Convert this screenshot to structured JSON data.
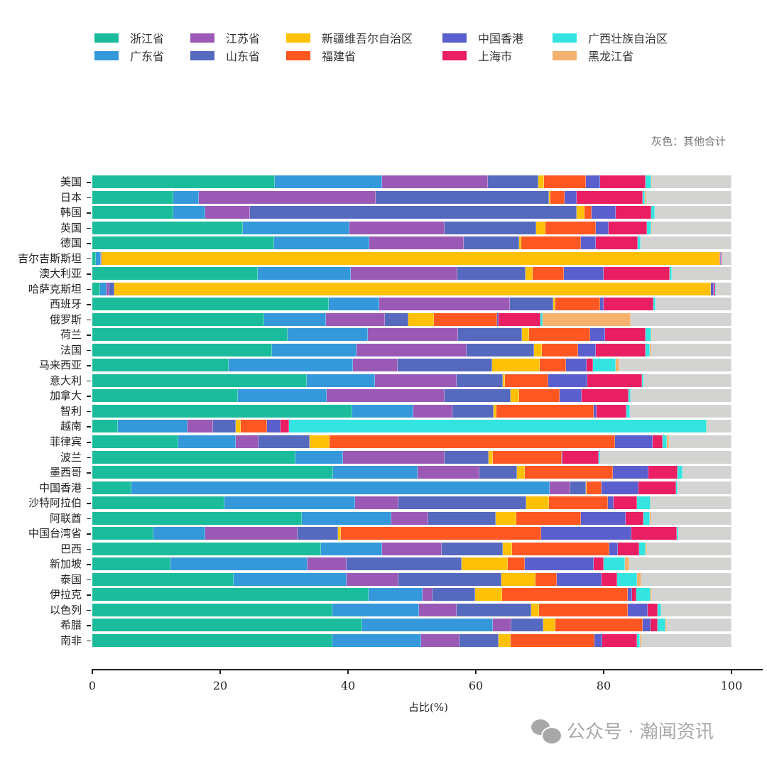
{
  "legend": {
    "items": [
      {
        "label": "浙江省",
        "color": "#1bbc9b"
      },
      {
        "label": "广东省",
        "color": "#3498db"
      },
      {
        "label": "江苏省",
        "color": "#9b59b6"
      },
      {
        "label": "山东省",
        "color": "#5569be"
      },
      {
        "label": "新疆维吾尔自治区",
        "color": "#ffc107"
      },
      {
        "label": "福建省",
        "color": "#ff5722"
      },
      {
        "label": "中国香港",
        "color": "#5b5fce"
      },
      {
        "label": "上海市",
        "color": "#e91e63"
      },
      {
        "label": "广西壮族自治区",
        "color": "#33e4e0"
      },
      {
        "label": "黑龙江省",
        "color": "#f4b26e"
      }
    ],
    "other_color": "#d3d3d1"
  },
  "note": "灰色：其他合计",
  "watermark": {
    "text": "公众号 · 瀚闻资讯",
    "icon": "wechat-icon"
  },
  "chart_data": {
    "type": "bar",
    "orientation": "horizontal",
    "stacked": true,
    "title": "",
    "xlabel": "占比(%)",
    "ylabel": "",
    "xlim": [
      0,
      100
    ],
    "xticks": [
      "0",
      "20",
      "40",
      "60",
      "80",
      "100"
    ],
    "grid": false,
    "legend_position": "top",
    "annotation": "灰色：其他合计",
    "categories": [
      "美国",
      "日本",
      "韩国",
      "英国",
      "德国",
      "吉尔吉斯斯坦",
      "澳大利亚",
      "哈萨克斯坦",
      "西班牙",
      "俄罗斯",
      "荷兰",
      "法国",
      "马来西亚",
      "意大利",
      "加拿大",
      "智利",
      "越南",
      "菲律宾",
      "波兰",
      "墨西哥",
      "中国香港",
      "沙特阿拉伯",
      "阿联酋",
      "中国台湾省",
      "巴西",
      "新加坡",
      "泰国",
      "伊拉克",
      "以色列",
      "希腊",
      "南非"
    ],
    "series": [
      {
        "name": "浙江省",
        "values": [
          28.6,
          12.7,
          12.7,
          23.5,
          28.4,
          0.6,
          25.9,
          1.2,
          37.0,
          26.9,
          30.6,
          28.2,
          21.3,
          33.5,
          22.8,
          40.7,
          4.0,
          13.4,
          31.8,
          37.7,
          6.5,
          20.7,
          32.8,
          9.6,
          35.8,
          12.2,
          22.1,
          43.5,
          37.5,
          42.2,
          37.6
        ]
      },
      {
        "name": "广东省",
        "values": [
          16.7,
          4.0,
          5.0,
          16.7,
          14.9,
          0.7,
          14.5,
          1.0,
          7.9,
          9.7,
          12.5,
          13.2,
          19.5,
          10.7,
          13.9,
          9.5,
          10.9,
          9.1,
          7.4,
          13.2,
          69.5,
          20.4,
          14.0,
          8.1,
          9.5,
          21.5,
          17.7,
          8.5,
          13.6,
          20.5,
          13.8
        ]
      },
      {
        "name": "江苏省",
        "values": [
          16.6,
          27.6,
          7.0,
          14.9,
          14.8,
          0.2,
          16.7,
          0.5,
          20.4,
          9.2,
          14.1,
          17.3,
          7.0,
          12.8,
          18.4,
          6.1,
          4.0,
          3.5,
          15.9,
          9.7,
          3.5,
          6.8,
          5.8,
          14.4,
          9.4,
          6.1,
          8.1,
          1.6,
          5.9,
          2.9,
          6.0
        ]
      },
      {
        "name": "山东省",
        "values": [
          7.9,
          27.1,
          51.1,
          14.3,
          8.7,
          0.0,
          10.7,
          0.8,
          6.8,
          3.7,
          10.0,
          10.5,
          14.8,
          7.2,
          10.3,
          6.5,
          3.5,
          8.0,
          6.9,
          5.9,
          2.6,
          20.0,
          10.5,
          6.4,
          9.5,
          18.0,
          16.1,
          6.7,
          11.7,
          5.0,
          6.2
        ]
      },
      {
        "name": "新疆维吾尔自治区",
        "values": [
          0.9,
          0.3,
          1.2,
          1.5,
          0.3,
          96.6,
          1.1,
          93.3,
          0.3,
          4.0,
          1.1,
          1.3,
          7.4,
          0.4,
          1.4,
          0.4,
          0.8,
          3.1,
          0.7,
          1.2,
          0.1,
          3.6,
          3.2,
          0.4,
          1.5,
          7.2,
          5.3,
          4.3,
          1.2,
          1.8,
          1.8
        ]
      },
      {
        "name": "福建省",
        "values": [
          6.5,
          2.2,
          1.1,
          7.9,
          9.3,
          0.1,
          4.9,
          0.0,
          7.0,
          9.8,
          9.6,
          5.7,
          4.1,
          6.7,
          6.3,
          15.3,
          4.1,
          44.7,
          10.7,
          13.7,
          2.4,
          9.2,
          10.1,
          31.3,
          15.2,
          2.7,
          3.4,
          19.8,
          13.9,
          13.7,
          13.2
        ]
      },
      {
        "name": "中国香港",
        "values": [
          2.2,
          1.9,
          3.8,
          2.0,
          2.4,
          0.1,
          6.2,
          0.4,
          0.6,
          0.3,
          2.3,
          2.7,
          3.2,
          6.2,
          3.5,
          0.4,
          2.2,
          5.9,
          0.2,
          5.6,
          6.2,
          0.9,
          7.1,
          14.1,
          1.3,
          10.7,
          7.0,
          0.6,
          3.1,
          1.2,
          1.2
        ]
      },
      {
        "name": "上海市",
        "values": [
          7.2,
          10.3,
          5.6,
          6.0,
          6.5,
          0.1,
          10.3,
          0.2,
          7.8,
          6.5,
          6.4,
          7.8,
          1.0,
          8.5,
          7.3,
          4.7,
          1.3,
          1.5,
          5.6,
          4.6,
          6.2,
          3.6,
          2.7,
          7.2,
          3.4,
          1.6,
          2.4,
          0.7,
          1.6,
          1.2,
          5.4
        ]
      },
      {
        "name": "广西壮族自治区",
        "values": [
          0.8,
          0.3,
          0.5,
          0.6,
          0.5,
          0.0,
          0.4,
          0.2,
          0.3,
          0.4,
          0.8,
          0.7,
          3.6,
          0.2,
          0.3,
          0.5,
          65.3,
          0.7,
          0.3,
          0.7,
          0.2,
          2.1,
          1.0,
          0.2,
          1.0,
          3.3,
          3.1,
          2.3,
          0.5,
          1.2,
          0.5
        ]
      },
      {
        "name": "黑龙江省",
        "values": [
          0.2,
          0.3,
          0.0,
          0.2,
          0.0,
          0.0,
          0.0,
          0.0,
          0.0,
          13.7,
          0.1,
          0.2,
          0.6,
          0.0,
          0.0,
          0.0,
          0.1,
          0.3,
          0.0,
          0.0,
          0.0,
          0.2,
          0.3,
          0.0,
          0.2,
          0.7,
          0.7,
          0.2,
          0.0,
          0.2,
          0.2
        ]
      },
      {
        "name": "其他合计",
        "values": [
          12.4,
          13.3,
          12.0,
          12.4,
          14.2,
          1.6,
          9.3,
          2.4,
          11.9,
          15.8,
          12.5,
          12.6,
          17.5,
          13.8,
          15.8,
          15.9,
          3.8,
          9.8,
          20.5,
          7.7,
          9.0,
          12.5,
          12.5,
          8.3,
          13.2,
          16.0,
          14.1,
          12.5,
          11.0,
          10.1,
          14.1
        ]
      }
    ]
  }
}
